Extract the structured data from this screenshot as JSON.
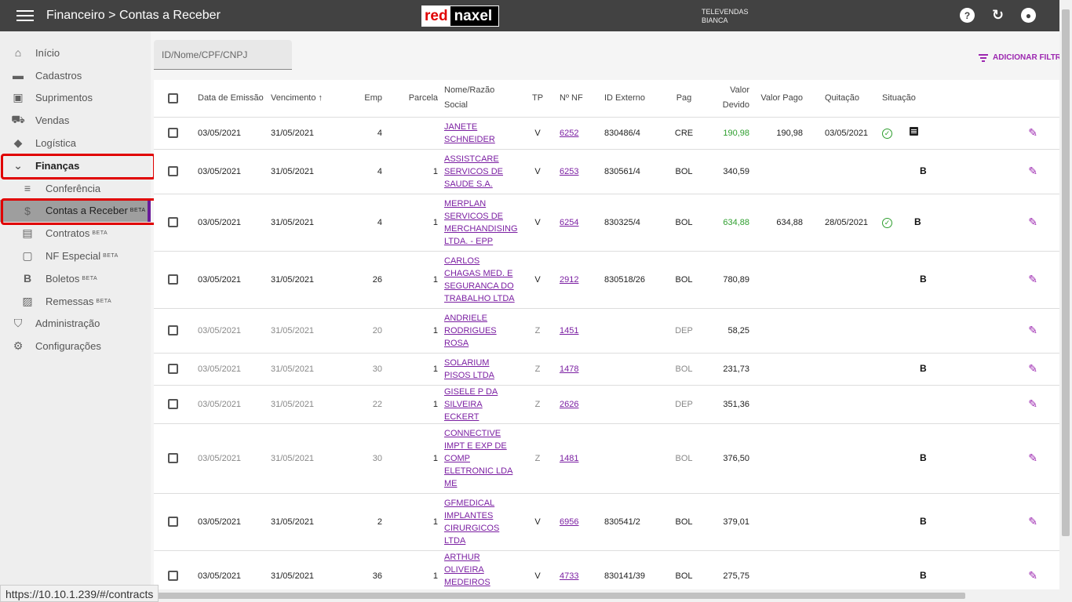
{
  "header": {
    "title": "Financeiro > Contas a Receber",
    "logo_red": "red",
    "logo_naxel": "naxel",
    "user_line1": "TELEVENDAS",
    "user_line2": "BIANCA",
    "help_icon": "?",
    "refresh_icon": "↻",
    "account_icon": "●"
  },
  "sidebar": {
    "items": [
      {
        "label": "Início",
        "icon": "⌂"
      },
      {
        "label": "Cadastros",
        "icon": "▬"
      },
      {
        "label": "Suprimentos",
        "icon": "▣"
      },
      {
        "label": "Vendas",
        "icon": "⛟"
      },
      {
        "label": "Logística",
        "icon": "◆"
      },
      {
        "label": "Finanças",
        "icon": "⌄"
      },
      {
        "label": "Conferência",
        "icon": "≡"
      },
      {
        "label": "Contas a Receber",
        "icon": "$",
        "beta": "BETA"
      },
      {
        "label": "Contratos",
        "icon": "▤",
        "beta": "BETA"
      },
      {
        "label": "NF Especial",
        "icon": "▢",
        "beta": "BETA"
      },
      {
        "label": "Boletos",
        "icon": "B",
        "beta": "BETA"
      },
      {
        "label": "Remessas",
        "icon": "▨",
        "beta": "BETA"
      },
      {
        "label": "Administração",
        "icon": "⛉"
      },
      {
        "label": "Configurações",
        "icon": "⚙"
      }
    ]
  },
  "search": {
    "placeholder": "ID/Nome/CPF/CNPJ"
  },
  "filter": {
    "label": "ADICIONAR FILTR"
  },
  "status_url": "https://10.10.1.239/#/contracts",
  "table": {
    "headers": {
      "emissao": "Data de Emissão",
      "vencimento": "Vencimento",
      "emp": "Emp",
      "parcela": "Parcela",
      "nome": "Nome/Razão Social",
      "tp": "TP",
      "nf": "Nº NF",
      "idext": "ID Externo",
      "pag": "Pag",
      "devido": "Valor Devido",
      "pago": "Valor Pago",
      "quitacao": "Quitação",
      "situacao": "Situação"
    },
    "rows": [
      {
        "emissao": "03/05/2021",
        "vencimento": "31/05/2021",
        "emp": "4",
        "parcela": "",
        "nome": "JANETE SCHNEIDER",
        "tp": "V",
        "nf": "6252",
        "idext": "830486/4",
        "pag": "CRE",
        "devido": "190,98",
        "pago": "190,98",
        "quitacao": "03/05/2021"
      },
      {
        "emissao": "03/05/2021",
        "vencimento": "31/05/2021",
        "emp": "4",
        "parcela": "1",
        "nome": "ASSISTCARE SERVICOS DE SAUDE S.A.",
        "tp": "V",
        "nf": "6253",
        "idext": "830561/4",
        "pag": "BOL",
        "devido": "340,59",
        "pago": "",
        "quitacao": "",
        "b": "B"
      },
      {
        "emissao": "03/05/2021",
        "vencimento": "31/05/2021",
        "emp": "4",
        "parcela": "1",
        "nome": "MERPLAN SERVICOS DE MERCHANDISING LTDA. - EPP",
        "tp": "V",
        "nf": "6254",
        "idext": "830325/4",
        "pag": "BOL",
        "devido": "634,88",
        "pago": "634,88",
        "quitacao": "28/05/2021",
        "b": "B"
      },
      {
        "emissao": "03/05/2021",
        "vencimento": "31/05/2021",
        "emp": "26",
        "parcela": "1",
        "nome": "CARLOS CHAGAS MED. E SEGURANCA DO TRABALHO LTDA",
        "tp": "V",
        "nf": "2912",
        "idext": "830518/26",
        "pag": "BOL",
        "devido": "780,89",
        "pago": "",
        "quitacao": "",
        "b": "B"
      },
      {
        "emissao": "03/05/2021",
        "vencimento": "31/05/2021",
        "emp": "20",
        "parcela": "1",
        "nome": "ANDRIELE RODRIGUES ROSA",
        "tp": "Z",
        "nf": "1451",
        "idext": "",
        "pag": "DEP",
        "devido": "58,25",
        "pago": "",
        "quitacao": ""
      },
      {
        "emissao": "03/05/2021",
        "vencimento": "31/05/2021",
        "emp": "30",
        "parcela": "1",
        "nome": "SOLARIUM PISOS LTDA",
        "tp": "Z",
        "nf": "1478",
        "idext": "",
        "pag": "BOL",
        "devido": "231,73",
        "pago": "",
        "quitacao": "",
        "b": "B"
      },
      {
        "emissao": "03/05/2021",
        "vencimento": "31/05/2021",
        "emp": "22",
        "parcela": "1",
        "nome": "GISELE P DA SILVEIRA ECKERT",
        "tp": "Z",
        "nf": "2626",
        "idext": "",
        "pag": "DEP",
        "devido": "351,36",
        "pago": "",
        "quitacao": ""
      },
      {
        "emissao": "03/05/2021",
        "vencimento": "31/05/2021",
        "emp": "30",
        "parcela": "1",
        "nome": "CONNECTIVE IMPT E EXP DE COMP ELETRONIC LDA ME",
        "tp": "Z",
        "nf": "1481",
        "idext": "",
        "pag": "BOL",
        "devido": "376,50",
        "pago": "",
        "quitacao": "",
        "b": "B"
      },
      {
        "emissao": "03/05/2021",
        "vencimento": "31/05/2021",
        "emp": "2",
        "parcela": "1",
        "nome": "GFMEDICAL IMPLANTES CIRURGICOS LTDA",
        "tp": "V",
        "nf": "6956",
        "idext": "830541/2",
        "pag": "BOL",
        "devido": "379,01",
        "pago": "",
        "quitacao": "",
        "b": "B"
      },
      {
        "emissao": "03/05/2021",
        "vencimento": "31/05/2021",
        "emp": "36",
        "parcela": "1",
        "nome": "ARTHUR OLIVEIRA MEDEIROS EIRELI",
        "tp": "V",
        "nf": "4733",
        "idext": "830141/39",
        "pag": "BOL",
        "devido": "275,75",
        "pago": "",
        "quitacao": "",
        "b": "B"
      }
    ]
  },
  "colors": {
    "accent": "#9c27b0",
    "topbar": "#424242",
    "paid": "#2e9e2e",
    "highlight": "#e00000"
  }
}
